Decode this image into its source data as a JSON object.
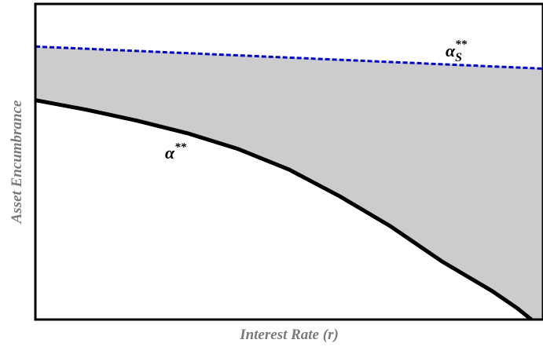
{
  "chart_data": {
    "type": "area",
    "title": "",
    "xlabel": "Interest Rate (r)",
    "ylabel": "Asset Encumbrance",
    "grid": false,
    "legend": "none",
    "x_ticks": [],
    "y_ticks": [],
    "xlim": [
      0,
      1
    ],
    "ylim": [
      0,
      1
    ],
    "series": [
      {
        "name": "α**",
        "label_base": "α",
        "label_sup": "**",
        "style": "solid",
        "color": "#000000",
        "x": [
          0,
          0.1,
          0.2,
          0.3,
          0.4,
          0.5,
          0.6,
          0.7,
          0.8,
          0.9,
          0.95,
          1.0
        ],
        "y": [
          0.695,
          0.665,
          0.63,
          0.59,
          0.54,
          0.475,
          0.39,
          0.295,
          0.185,
          0.09,
          0.035,
          -0.03
        ]
      },
      {
        "name": "α_S**",
        "label_base": "α",
        "label_sub": "S",
        "label_sup": "**",
        "style": "dashed",
        "color": "#0000cc",
        "x": [
          0,
          1.0
        ],
        "y": [
          0.865,
          0.795
        ]
      }
    ],
    "shaded_region": {
      "between": [
        "α**",
        "α_S**"
      ],
      "color": "#cccccc"
    }
  }
}
